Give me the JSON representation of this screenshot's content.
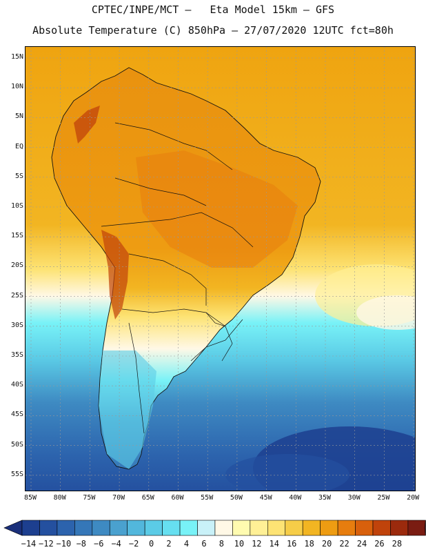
{
  "header": {
    "line1": "CPTEC/INPE/MCT –   Eta Model 15km – GFS",
    "line2": "Absolute Temperature (C) 850hPa – 27/07/2020 12UTC fct=80h"
  },
  "axes": {
    "lat_ticks": [
      "15N",
      "10N",
      "5N",
      "EQ",
      "5S",
      "10S",
      "15S",
      "20S",
      "25S",
      "30S",
      "35S",
      "40S",
      "45S",
      "50S",
      "55S"
    ],
    "lon_ticks": [
      "85W",
      "80W",
      "75W",
      "70W",
      "65W",
      "60W",
      "55W",
      "50W",
      "45W",
      "40W",
      "35W",
      "30W",
      "25W",
      "20W"
    ]
  },
  "colorbar": {
    "labels": [
      "-14",
      "-12",
      "-10",
      "-8",
      "-6",
      "-4",
      "-2",
      "0",
      "2",
      "4",
      "6",
      "8",
      "10",
      "12",
      "14",
      "16",
      "18",
      "20",
      "22",
      "24",
      "26",
      "28"
    ],
    "colors": [
      "#1d3f8f",
      "#24509f",
      "#2c63ad",
      "#3577b8",
      "#3e8ac2",
      "#4aa1cf",
      "#52b7dc",
      "#5bcbe6",
      "#66dff0",
      "#78f2f7",
      "#c9f1f8",
      "#fff8e6",
      "#fffbb0",
      "#fff096",
      "#fde374",
      "#f6cd48",
      "#f2b522",
      "#ee9c12",
      "#e77d0e",
      "#d8600c",
      "#c0430b",
      "#9b2a0d",
      "#7a1c12"
    ],
    "under_color": "#1a2f7a",
    "over_color": "#6b1220"
  },
  "map": {
    "type": "filled-contour",
    "variable": "Absolute Temperature (C)",
    "level_hPa": 850,
    "lon_range": [
      -86,
      -19.5
    ],
    "lat_range": [
      -58.5,
      16
    ],
    "ocean_colors": {
      "warm": "#f2b522",
      "mild": "#fde374",
      "cool": "#78f2f7",
      "cold": "#2c63ad"
    }
  }
}
